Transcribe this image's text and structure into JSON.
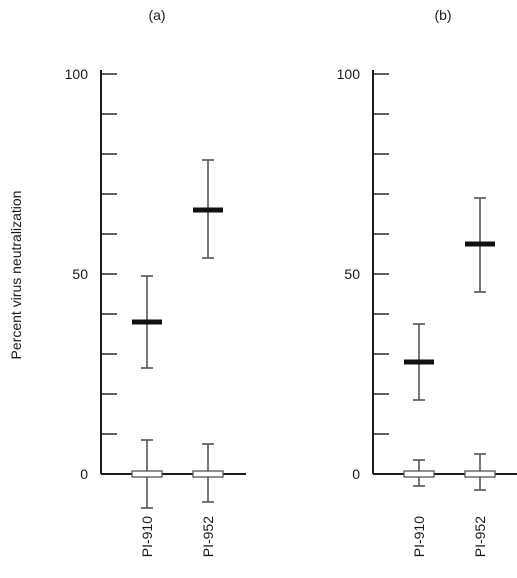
{
  "figure": {
    "ylabel": "Percent virus neutralization"
  },
  "chart_data": [
    {
      "type": "scatter",
      "title": "(a)",
      "ylabel": "Percent virus neutralization",
      "ylim": [
        0,
        100
      ],
      "y_tick_labels": [
        "0",
        "50",
        "100"
      ],
      "y_minor_step": 10,
      "categories": [
        "PI-910",
        "PI-952"
      ],
      "series": [
        {
          "marker": "filled-bar",
          "mean": [
            38,
            66
          ],
          "low": [
            26.5,
            54
          ],
          "high": [
            49.5,
            78.5
          ]
        },
        {
          "marker": "open-bar",
          "mean": [
            0,
            0
          ],
          "low": [
            -8.5,
            -7
          ],
          "high": [
            8.5,
            7.5
          ]
        }
      ],
      "grid": false
    },
    {
      "type": "scatter",
      "title": "(b)",
      "ylim": [
        0,
        100
      ],
      "y_tick_labels": [
        "0",
        "50",
        "100"
      ],
      "y_minor_step": 10,
      "categories": [
        "PI-910",
        "PI-952"
      ],
      "series": [
        {
          "marker": "filled-bar",
          "mean": [
            28,
            57.5
          ],
          "low": [
            18.5,
            45.5
          ],
          "high": [
            37.5,
            69
          ]
        },
        {
          "marker": "open-bar",
          "mean": [
            0,
            0
          ],
          "low": [
            -3,
            -4
          ],
          "high": [
            3.5,
            5
          ]
        }
      ],
      "grid": false
    }
  ]
}
